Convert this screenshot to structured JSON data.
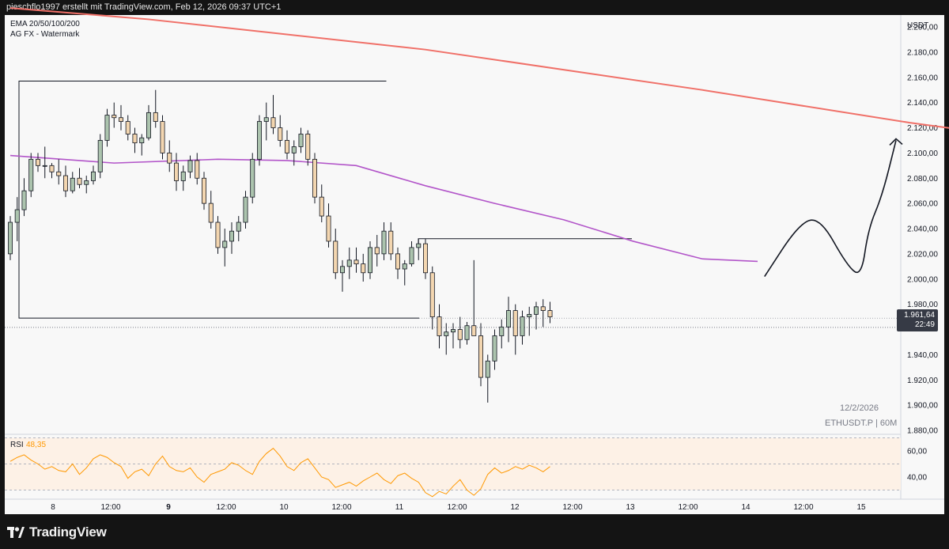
{
  "header": {
    "title": "pieschflo1997 erstellt mit TradingView.com, Feb 12, 2026 09:37 UTC+1"
  },
  "legend": {
    "line1": "EMA 20/50/100/200",
    "line2": "AG FX - Watermark"
  },
  "watermark": {
    "date": "12/2/2026",
    "symbol": "ETHUSDT.P | 60M"
  },
  "price_axis": {
    "currency": "USDT",
    "ticks": [
      "2.200,00",
      "2.180,00",
      "2.160,00",
      "2.140,00",
      "2.120,00",
      "2.100,00",
      "2.080,00",
      "2.060,00",
      "2.040,00",
      "2.020,00",
      "2.000,00",
      "1.980,00",
      "1.940,00",
      "1.920,00",
      "1.900,00",
      "1.880,00"
    ],
    "last_price": "1.961,64",
    "countdown": "22:49"
  },
  "rsi": {
    "label": "RSI",
    "value": "48,35",
    "ticks": [
      "60,00",
      "40,00"
    ],
    "color": "#ff9800"
  },
  "time_axis": {
    "labels": [
      "8",
      "12:00",
      "9",
      "12:00",
      "10",
      "12:00",
      "11",
      "12:00",
      "12",
      "12:00",
      "13",
      "12:00",
      "14",
      "12:00",
      "15"
    ]
  },
  "branding": {
    "name": "TradingView"
  },
  "colors": {
    "up": "#acc4ae",
    "down": "#f3d6b0",
    "wick": "#131722",
    "ema200": "#f07068",
    "ema100": "#b255c9",
    "rsi": "#ff9800"
  },
  "chart_data": {
    "type": "candlestick",
    "symbol": "ETHUSDT.P",
    "interval": "60M",
    "ylim": [
      1880,
      2210
    ],
    "series_ohlc": [
      [
        2020,
        2050,
        2015,
        2045
      ],
      [
        2045,
        2065,
        2030,
        2055
      ],
      [
        2055,
        2080,
        2050,
        2070
      ],
      [
        2070,
        2100,
        2065,
        2095
      ],
      [
        2095,
        2100,
        2085,
        2090
      ],
      [
        2090,
        2105,
        2080,
        2090
      ],
      [
        2090,
        2092,
        2080,
        2085
      ],
      [
        2085,
        2095,
        2075,
        2082
      ],
      [
        2082,
        2090,
        2065,
        2070
      ],
      [
        2070,
        2085,
        2068,
        2080
      ],
      [
        2080,
        2088,
        2072,
        2075
      ],
      [
        2075,
        2082,
        2068,
        2078
      ],
      [
        2078,
        2090,
        2075,
        2085
      ],
      [
        2085,
        2115,
        2080,
        2110
      ],
      [
        2110,
        2135,
        2105,
        2130
      ],
      [
        2130,
        2140,
        2120,
        2128
      ],
      [
        2128,
        2138,
        2118,
        2125
      ],
      [
        2125,
        2130,
        2110,
        2115
      ],
      [
        2115,
        2120,
        2100,
        2108
      ],
      [
        2108,
        2115,
        2098,
        2112
      ],
      [
        2112,
        2138,
        2110,
        2132
      ],
      [
        2132,
        2150,
        2120,
        2125
      ],
      [
        2125,
        2130,
        2095,
        2100
      ],
      [
        2100,
        2110,
        2085,
        2092
      ],
      [
        2092,
        2100,
        2070,
        2078
      ],
      [
        2078,
        2090,
        2070,
        2085
      ],
      [
        2085,
        2098,
        2080,
        2094
      ],
      [
        2094,
        2100,
        2075,
        2080
      ],
      [
        2080,
        2085,
        2055,
        2060
      ],
      [
        2060,
        2070,
        2040,
        2045
      ],
      [
        2045,
        2050,
        2020,
        2025
      ],
      [
        2025,
        2040,
        2010,
        2030
      ],
      [
        2030,
        2045,
        2020,
        2038
      ],
      [
        2038,
        2050,
        2030,
        2045
      ],
      [
        2045,
        2070,
        2040,
        2065
      ],
      [
        2065,
        2100,
        2060,
        2095
      ],
      [
        2095,
        2130,
        2090,
        2125
      ],
      [
        2125,
        2140,
        2110,
        2128
      ],
      [
        2128,
        2146,
        2115,
        2120
      ],
      [
        2120,
        2130,
        2105,
        2110
      ],
      [
        2110,
        2118,
        2095,
        2100
      ],
      [
        2100,
        2110,
        2090,
        2105
      ],
      [
        2105,
        2120,
        2100,
        2115
      ],
      [
        2115,
        2118,
        2090,
        2095
      ],
      [
        2095,
        2100,
        2060,
        2065
      ],
      [
        2065,
        2075,
        2045,
        2050
      ],
      [
        2050,
        2060,
        2025,
        2030
      ],
      [
        2030,
        2040,
        2000,
        2005
      ],
      [
        2005,
        2015,
        1990,
        2010
      ],
      [
        2010,
        2025,
        2000,
        2015
      ],
      [
        2015,
        2025,
        2005,
        2012
      ],
      [
        2012,
        2020,
        1998,
        2005
      ],
      [
        2005,
        2030,
        2000,
        2025
      ],
      [
        2025,
        2035,
        2010,
        2020
      ],
      [
        2020,
        2045,
        2015,
        2038
      ],
      [
        2038,
        2045,
        2015,
        2020
      ],
      [
        2020,
        2025,
        2000,
        2008
      ],
      [
        2008,
        2015,
        1995,
        2012
      ],
      [
        2012,
        2030,
        2010,
        2025
      ],
      [
        2025,
        2032,
        2015,
        2028
      ],
      [
        2028,
        2032,
        2000,
        2005
      ],
      [
        2005,
        2010,
        1960,
        1970
      ],
      [
        1970,
        1980,
        1945,
        1955
      ],
      [
        1955,
        1965,
        1940,
        1958
      ],
      [
        1958,
        1965,
        1945,
        1960
      ],
      [
        1960,
        1970,
        1945,
        1952
      ],
      [
        1952,
        1966,
        1948,
        1963
      ],
      [
        1963,
        2015,
        1955,
        1955
      ],
      [
        1955,
        1965,
        1915,
        1922
      ],
      [
        1922,
        1940,
        1902,
        1935
      ],
      [
        1935,
        1960,
        1928,
        1955
      ],
      [
        1955,
        1968,
        1945,
        1962
      ],
      [
        1962,
        1986,
        1950,
        1975
      ],
      [
        1975,
        1980,
        1940,
        1955
      ],
      [
        1955,
        1975,
        1948,
        1970
      ],
      [
        1970,
        1978,
        1955,
        1972
      ],
      [
        1972,
        1982,
        1960,
        1978
      ],
      [
        1978,
        1984,
        1962,
        1975
      ],
      [
        1975,
        1982,
        1965,
        1970
      ]
    ],
    "ema200": [
      [
        0,
        2215
      ],
      [
        20,
        2206
      ],
      [
        60,
        2182
      ],
      [
        100,
        2150
      ],
      [
        130,
        2124
      ],
      [
        160,
        2102
      ]
    ],
    "ema100": [
      [
        0,
        2098
      ],
      [
        15,
        2092
      ],
      [
        30,
        2095
      ],
      [
        40,
        2094
      ],
      [
        50,
        2090
      ],
      [
        60,
        2074
      ],
      [
        70,
        2060
      ],
      [
        80,
        2047
      ],
      [
        90,
        2030
      ],
      [
        100,
        2016
      ],
      [
        108,
        2014
      ]
    ],
    "rsi": [
      52,
      55,
      57,
      53,
      50,
      46,
      48,
      45,
      44,
      50,
      42,
      47,
      54,
      57,
      55,
      51,
      48,
      39,
      44,
      46,
      41,
      50,
      56,
      48,
      45,
      44,
      47,
      40,
      36,
      42,
      44,
      46,
      51,
      49,
      45,
      42,
      52,
      58,
      62,
      56,
      48,
      45,
      51,
      54,
      47,
      40,
      38,
      32,
      34,
      36,
      33,
      37,
      40,
      43,
      38,
      35,
      41,
      43,
      39,
      36,
      28,
      25,
      29,
      27,
      33,
      38,
      30,
      26,
      31,
      42,
      47,
      43,
      45,
      48,
      46,
      49,
      47,
      44,
      48
    ],
    "annotations": {
      "range_box": {
        "x0": 0,
        "x1": 54,
        "high": 2157,
        "low": 1969
      },
      "resistance": {
        "x0": 80,
        "x1": 120,
        "price": 2032
      },
      "projection": [
        [
          109,
          2002
        ],
        [
          114,
          2044
        ],
        [
          117,
          2049
        ],
        [
          121,
          2010
        ],
        [
          123,
          2002
        ],
        [
          124,
          2040
        ],
        [
          126,
          2066
        ],
        [
          128,
          2110
        ]
      ]
    }
  }
}
